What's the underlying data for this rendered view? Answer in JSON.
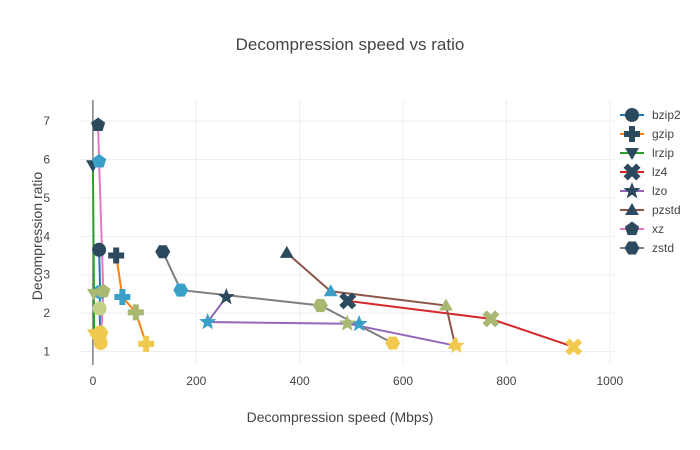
{
  "chart_data": {
    "type": "scatter",
    "title": "Decompression speed vs ratio",
    "xlabel": "Decompression speed (Mbps)",
    "ylabel": "Decompression ratio",
    "xlim": [
      -25,
      1010
    ],
    "ylim": [
      0.65,
      7.55
    ],
    "xticks": [
      0,
      200,
      400,
      600,
      800,
      1000
    ],
    "yticks": [
      1,
      2,
      3,
      4,
      5,
      6,
      7
    ],
    "grid": true,
    "legend_position": "right",
    "mode": "lines+markers",
    "series": [
      {
        "name": "bzip2",
        "symbol": "circle",
        "line_color": "#1f77b4",
        "points": [
          {
            "x": 12,
            "y": 3.65,
            "color": "#2c4a5e"
          },
          {
            "x": 14,
            "y": 2.55,
            "color": "#3aa0c8"
          },
          {
            "x": 13,
            "y": 2.12,
            "color": "#c2d088"
          },
          {
            "x": 14,
            "y": 1.5,
            "color": "#f0c94e"
          },
          {
            "x": 15,
            "y": 1.22,
            "color": "#f0c94e"
          }
        ]
      },
      {
        "name": "gzip",
        "symbol": "cross",
        "line_color": "#ff7f0e",
        "points": [
          {
            "x": 45,
            "y": 3.5,
            "color": "#2c4a5e"
          },
          {
            "x": 57,
            "y": 2.42,
            "color": "#3aa0c8"
          },
          {
            "x": 83,
            "y": 2.02,
            "color": "#a8b870"
          },
          {
            "x": 103,
            "y": 1.2,
            "color": "#f0c94e"
          }
        ]
      },
      {
        "name": "lrzip",
        "symbol": "triangle-down",
        "line_color": "#2ca02c",
        "points": [
          {
            "x": 0,
            "y": 5.85,
            "color": "#2c4a5e"
          },
          {
            "x": 2,
            "y": 2.5,
            "color": "#a8b870"
          },
          {
            "x": 2,
            "y": 1.45,
            "color": "#f0c94e"
          }
        ]
      },
      {
        "name": "lz4",
        "symbol": "x",
        "line_color": "#d62728",
        "points": [
          {
            "x": 493,
            "y": 2.32,
            "color": "#2c4a5e"
          },
          {
            "x": 770,
            "y": 1.85,
            "color": "#a8b870"
          },
          {
            "x": 930,
            "y": 1.12,
            "color": "#f0c94e"
          }
        ]
      },
      {
        "name": "lzo",
        "symbol": "star",
        "line_color": "#9467bd",
        "points": [
          {
            "x": 258,
            "y": 2.42,
            "color": "#2c4a5e"
          },
          {
            "x": 222,
            "y": 1.77,
            "color": "#3aa0c8"
          },
          {
            "x": 515,
            "y": 1.72,
            "color": "#3aa0c8"
          },
          {
            "x": 492,
            "y": 1.73,
            "color": "#a8b870"
          },
          {
            "x": 703,
            "y": 1.15,
            "color": "#f0c94e"
          }
        ]
      },
      {
        "name": "pzstd",
        "symbol": "triangle-up",
        "line_color": "#8c564b",
        "points": [
          {
            "x": 375,
            "y": 3.57,
            "color": "#2c4a5e"
          },
          {
            "x": 460,
            "y": 2.57,
            "color": "#3aa0c8"
          },
          {
            "x": 683,
            "y": 2.2,
            "color": "#a8b870"
          },
          {
            "x": 700,
            "y": 1.2,
            "color": "#f0c94e"
          }
        ]
      },
      {
        "name": "xz",
        "symbol": "pentagon",
        "line_color": "#e377c2",
        "points": [
          {
            "x": 10,
            "y": 6.9,
            "color": "#2c4a5e"
          },
          {
            "x": 12,
            "y": 5.95,
            "color": "#3aa0c8"
          },
          {
            "x": 20,
            "y": 2.57,
            "color": "#a8b870"
          },
          {
            "x": 16,
            "y": 1.45,
            "color": "#f0c94e"
          }
        ]
      },
      {
        "name": "zstd",
        "symbol": "hexagon",
        "line_color": "#7f7f7f",
        "points": [
          {
            "x": 135,
            "y": 3.6,
            "color": "#2c4a5e"
          },
          {
            "x": 170,
            "y": 2.6,
            "color": "#3aa0c8"
          },
          {
            "x": 440,
            "y": 2.2,
            "color": "#a8b870"
          },
          {
            "x": 580,
            "y": 1.22,
            "color": "#f0c94e"
          }
        ]
      }
    ]
  }
}
